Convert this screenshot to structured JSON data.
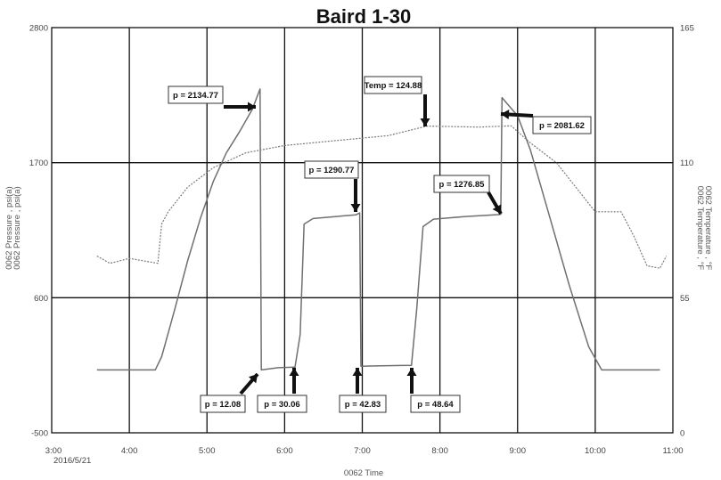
{
  "chart_data": {
    "type": "line",
    "title": "Baird 1-30",
    "xlabel": "0062 Time",
    "ylabel_left": [
      "0062 Pressure , psi(a)",
      "0062 Pressure , psi(a)"
    ],
    "ylabel_right": [
      "0062 Temperature , °F",
      "0062 Temperature , °F"
    ],
    "x_range": [
      "3:00",
      "11:00"
    ],
    "x_ticks": [
      "3:00",
      "4:00",
      "5:00",
      "6:00",
      "7:00",
      "8:00",
      "9:00",
      "10:00",
      "11:00"
    ],
    "x_date_label": "2016/5/21",
    "y_left_range": [
      -500,
      2800
    ],
    "y_left_ticks": [
      "2800",
      "1700",
      "600",
      "-500"
    ],
    "y_right_range": [
      0,
      165
    ],
    "y_right_ticks": [
      "165",
      "110",
      "55",
      "0"
    ],
    "grid": true,
    "series": [
      {
        "name": "0062 Pressure , psi(a)",
        "axis": "left",
        "style": "solid",
        "points": [
          [
            "3:35",
            12
          ],
          [
            "4:20",
            12
          ],
          [
            "4:25",
            120
          ],
          [
            "4:35",
            500
          ],
          [
            "4:45",
            900
          ],
          [
            "4:55",
            1250
          ],
          [
            "5:05",
            1550
          ],
          [
            "5:15",
            1780
          ],
          [
            "5:25",
            1950
          ],
          [
            "5:35",
            2134.77
          ],
          [
            "5:41",
            2300
          ],
          [
            "5:42",
            12.08
          ],
          [
            "5:55",
            30.06
          ],
          [
            "6:08",
            35
          ],
          [
            "6:12",
            300
          ],
          [
            "6:15",
            1200
          ],
          [
            "6:22",
            1245
          ],
          [
            "6:40",
            1262
          ],
          [
            "6:55",
            1275
          ],
          [
            "6:58",
            1290.77
          ],
          [
            "6:59",
            42.83
          ],
          [
            "7:10",
            45
          ],
          [
            "7:30",
            48.64
          ],
          [
            "7:38",
            50
          ],
          [
            "7:42",
            500
          ],
          [
            "7:47",
            1180
          ],
          [
            "7:55",
            1240
          ],
          [
            "8:20",
            1262
          ],
          [
            "8:45",
            1276.85
          ],
          [
            "8:47",
            1280
          ],
          [
            "8:48",
            2230
          ],
          [
            "8:52",
            2180
          ],
          [
            "9:00",
            2081.62
          ],
          [
            "9:10",
            1800
          ],
          [
            "9:25",
            1250
          ],
          [
            "9:40",
            700
          ],
          [
            "9:55",
            200
          ],
          [
            "10:05",
            12
          ],
          [
            "10:50",
            12
          ]
        ]
      },
      {
        "name": "0062 Temperature , °F",
        "axis": "right",
        "style": "dotted",
        "points": [
          [
            "3:35",
            72
          ],
          [
            "3:45",
            69
          ],
          [
            "4:00",
            71
          ],
          [
            "4:22",
            69
          ],
          [
            "4:25",
            85
          ],
          [
            "4:30",
            90
          ],
          [
            "4:45",
            100
          ],
          [
            "5:05",
            108
          ],
          [
            "5:30",
            114
          ],
          [
            "6:00",
            117
          ],
          [
            "6:30",
            118.5
          ],
          [
            "7:00",
            120
          ],
          [
            "7:20",
            121
          ],
          [
            "7:50",
            124.88
          ],
          [
            "8:30",
            124.5
          ],
          [
            "8:55",
            125
          ],
          [
            "9:10",
            118
          ],
          [
            "9:30",
            110
          ],
          [
            "9:45",
            100
          ],
          [
            "10:00",
            90
          ],
          [
            "10:20",
            90
          ],
          [
            "10:30",
            80
          ],
          [
            "10:40",
            68
          ],
          [
            "10:50",
            67
          ],
          [
            "10:55",
            72
          ]
        ]
      }
    ],
    "annotations": [
      {
        "text": "p = 2134.77"
      },
      {
        "text": "p = 12.08"
      },
      {
        "text": "p = 30.06"
      },
      {
        "text": "Temp = 124.88"
      },
      {
        "text": "p = 1290.77"
      },
      {
        "text": "p = 42.83"
      },
      {
        "text": "p = 48.64"
      },
      {
        "text": "p = 1276.85"
      },
      {
        "text": "p = 2081.62"
      }
    ]
  }
}
